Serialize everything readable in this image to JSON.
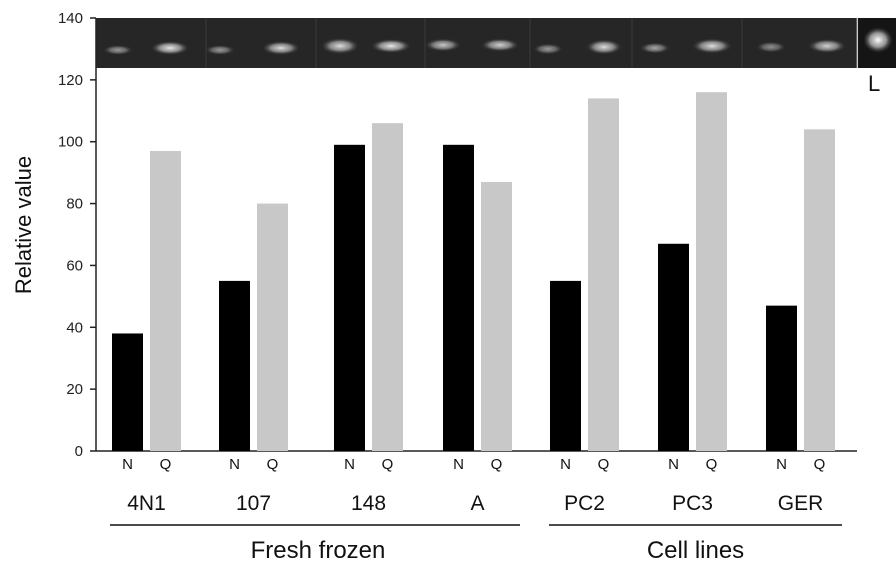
{
  "chart_data": {
    "type": "bar",
    "ylabel": "Relative value",
    "ylim": [
      0,
      140
    ],
    "yticks": [
      0,
      20,
      40,
      60,
      80,
      100,
      120,
      140
    ],
    "grid": false,
    "categories": [
      "4N1",
      "107",
      "148",
      "A",
      "PC2",
      "PC3",
      "GER"
    ],
    "bar_labels": [
      "N",
      "Q"
    ],
    "series": [
      {
        "name": "N",
        "color": "#000000",
        "values": [
          38,
          55,
          99,
          99,
          55,
          67,
          47
        ]
      },
      {
        "name": "Q",
        "color": "#c8c8c8",
        "values": [
          97,
          80,
          106,
          87,
          114,
          116,
          104
        ]
      }
    ],
    "groups": [
      {
        "label": "Fresh frozen",
        "categories": [
          "4N1",
          "107",
          "148",
          "A"
        ]
      },
      {
        "label": "Cell lines",
        "categories": [
          "PC2",
          "PC3",
          "GER"
        ]
      }
    ],
    "gel_inset": {
      "lane_label": "L"
    }
  }
}
